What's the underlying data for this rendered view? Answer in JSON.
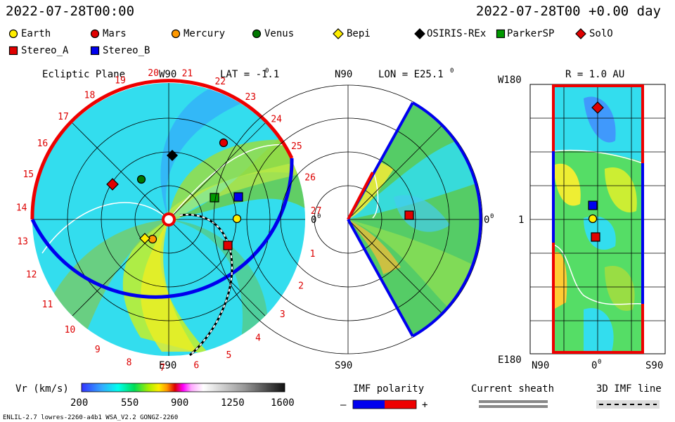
{
  "header": {
    "left_time": "2022-07-28T00:00",
    "right_time": "2022-07-28T00 +0.00 day"
  },
  "legend": [
    {
      "label": "Earth",
      "shape": "circle",
      "color": "#ffee00"
    },
    {
      "label": "Mars",
      "shape": "circle",
      "color": "#e00000"
    },
    {
      "label": "Mercury",
      "shape": "circle",
      "color": "#ff9900"
    },
    {
      "label": "Venus",
      "shape": "circle",
      "color": "#007700"
    },
    {
      "label": "Bepi",
      "shape": "diamond",
      "color": "#ffee00"
    },
    {
      "label": "OSIRIS-REx",
      "shape": "diamond",
      "color": "#000000"
    },
    {
      "label": "ParkerSP",
      "shape": "square",
      "color": "#009900"
    },
    {
      "label": "SolO",
      "shape": "diamond",
      "color": "#e00000"
    },
    {
      "label": "Stereo_A",
      "shape": "square",
      "color": "#e00000"
    },
    {
      "label": "Stereo_B",
      "shape": "square",
      "color": "#0000ee"
    }
  ],
  "panel1": {
    "title": "Ecliptic Plane",
    "lat_label": "LAT = -1.1",
    "deg": "0",
    "top_label": "W90",
    "bottom_label": "E90",
    "right_label": "0",
    "right_deg": "0",
    "longitude_ticks": [
      "1",
      "2",
      "3",
      "4",
      "5",
      "6",
      "7",
      "8",
      "9",
      "10",
      "11",
      "12",
      "13",
      "14",
      "15",
      "16",
      "17",
      "18",
      "19",
      "20",
      "21",
      "22",
      "23",
      "24",
      "25",
      "26",
      "27"
    ]
  },
  "panel2": {
    "lon_label": "LON = E25.1",
    "deg": "0",
    "top_label": "N90",
    "bottom_label": "S90",
    "right_label": "0",
    "right_deg": "0"
  },
  "panel3": {
    "r_label": "R = 1.0 AU",
    "top_left": "W180",
    "bottom_left": "E180",
    "mid_left": "1",
    "x_left": "N90",
    "x_mid": "0",
    "x_mid_deg": "0",
    "x_right": "S90"
  },
  "colorbar": {
    "label": "Vr (km/s)",
    "ticks": [
      "200",
      "550",
      "900",
      "1250",
      "1600"
    ]
  },
  "imf": {
    "label": "IMF polarity",
    "minus": "–",
    "plus": "+",
    "minus_color": "#0000ee",
    "plus_color": "#ee0000"
  },
  "current_sheath": {
    "label": "Current sheath"
  },
  "imf_line": {
    "label": "3D IMF line"
  },
  "footer": {
    "left": "ENLIL-2.7 lowres-2260-a4b1 WSA_V2.2 GONGZ-2260"
  }
}
